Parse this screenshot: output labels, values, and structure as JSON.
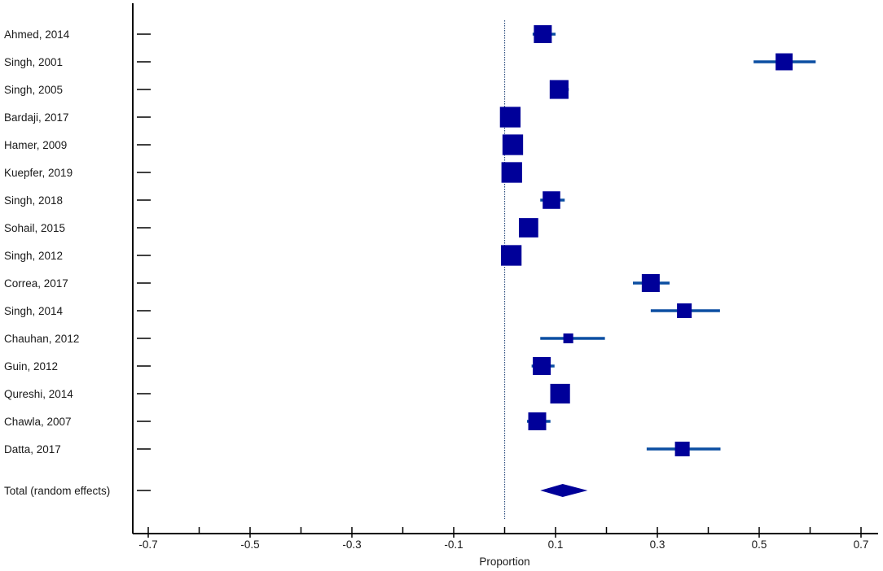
{
  "chart_data": {
    "type": "forest",
    "xlabel": "Proportion",
    "xlim": [
      -0.75,
      0.72
    ],
    "ref_line_x": 0.0,
    "x_ticks": [
      {
        "value": -0.7,
        "label": "-0.7"
      },
      {
        "value": -0.5,
        "label": "-0.5"
      },
      {
        "value": -0.3,
        "label": "-0.3"
      },
      {
        "value": -0.1,
        "label": "-0.1"
      },
      {
        "value": 0.1,
        "label": "0.1"
      },
      {
        "value": 0.3,
        "label": "0.3"
      },
      {
        "value": 0.5,
        "label": "0.5"
      },
      {
        "value": 0.7,
        "label": "0.7"
      }
    ],
    "x_minor_ticks": [
      -0.6,
      -0.4,
      -0.2,
      0.0,
      0.2,
      0.4,
      0.6
    ],
    "studies": [
      {
        "label": "Ahmed, 2014",
        "estimate": 0.075,
        "ci": [
          0.055,
          0.1
        ],
        "weight": 1.0
      },
      {
        "label": "Singh, 2001",
        "estimate": 0.549,
        "ci": [
          0.489,
          0.611
        ],
        "weight": 0.95
      },
      {
        "label": "Singh, 2005",
        "estimate": 0.107,
        "ci": [
          0.09,
          0.126
        ],
        "weight": 1.05
      },
      {
        "label": "Bardaji, 2017",
        "estimate": 0.011,
        "ci": [
          0.005,
          0.02
        ],
        "weight": 1.15
      },
      {
        "label": "Hamer, 2009",
        "estimate": 0.016,
        "ci": [
          0.008,
          0.026
        ],
        "weight": 1.15
      },
      {
        "label": "Kuepfer, 2019",
        "estimate": 0.014,
        "ci": [
          0.007,
          0.024
        ],
        "weight": 1.15
      },
      {
        "label": "Singh, 2018",
        "estimate": 0.092,
        "ci": [
          0.07,
          0.118
        ],
        "weight": 0.98
      },
      {
        "label": "Sohail, 2015",
        "estimate": 0.047,
        "ci": [
          0.033,
          0.063
        ],
        "weight": 1.08
      },
      {
        "label": "Singh, 2012",
        "estimate": 0.013,
        "ci": [
          0.006,
          0.023
        ],
        "weight": 1.15
      },
      {
        "label": "Correa, 2017",
        "estimate": 0.287,
        "ci": [
          0.252,
          0.324
        ],
        "weight": 1.0
      },
      {
        "label": "Singh, 2014",
        "estimate": 0.353,
        "ci": [
          0.287,
          0.423
        ],
        "weight": 0.82
      },
      {
        "label": "Chauhan, 2012",
        "estimate": 0.125,
        "ci": [
          0.07,
          0.197
        ],
        "weight": 0.55
      },
      {
        "label": "Guin, 2012",
        "estimate": 0.073,
        "ci": [
          0.053,
          0.098
        ],
        "weight": 1.0
      },
      {
        "label": "Qureshi, 2014",
        "estimate": 0.109,
        "ci": [
          0.094,
          0.125
        ],
        "weight": 1.1
      },
      {
        "label": "Chawla, 2007",
        "estimate": 0.064,
        "ci": [
          0.044,
          0.09
        ],
        "weight": 1.0
      },
      {
        "label": "Datta, 2017",
        "estimate": 0.349,
        "ci": [
          0.279,
          0.424
        ],
        "weight": 0.82
      }
    ],
    "total": {
      "label": "Total (random effects)",
      "estimate": 0.114,
      "ci": [
        0.07,
        0.163
      ]
    },
    "colors": {
      "marker": "#000099",
      "ci_line": "#0b4ea2",
      "axis": "#000000",
      "ref_line": "#2b4c7e"
    }
  }
}
